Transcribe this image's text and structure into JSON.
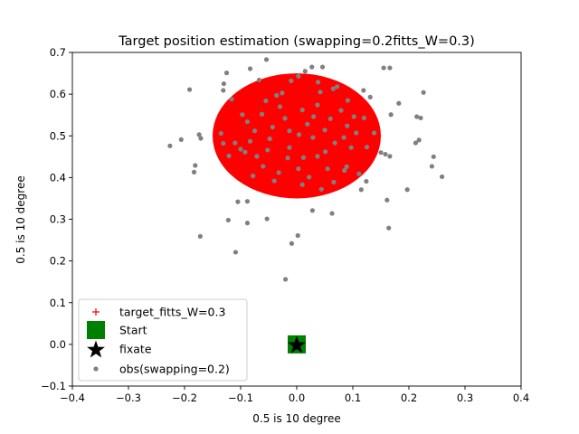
{
  "chart_data": {
    "type": "scatter",
    "title": "Target position estimation (swapping=0.2fitts_W=0.3)",
    "xlabel": "0.5 is 10 degree",
    "ylabel": "0.5 is 10 degree",
    "xlim": [
      -0.4,
      0.4
    ],
    "ylim": [
      -0.1,
      0.7
    ],
    "xticks": [
      -0.4,
      -0.3,
      -0.2,
      -0.1,
      0.0,
      0.1,
      0.2,
      0.3,
      0.4
    ],
    "xtick_labels": [
      "−0.4",
      "−0.3",
      "−0.2",
      "−0.1",
      "0.0",
      "0.1",
      "0.2",
      "0.3",
      "0.4"
    ],
    "yticks": [
      -0.1,
      0.0,
      0.1,
      0.2,
      0.3,
      0.4,
      0.5,
      0.6,
      0.7
    ],
    "ytick_labels": [
      "−0.1",
      "0.0",
      "0.1",
      "0.2",
      "0.3",
      "0.4",
      "0.5",
      "0.6",
      "0.7"
    ],
    "grid": false,
    "legend_position": "lower-left",
    "legend": [
      {
        "label": "target_fitts_W=0.3",
        "marker": "plus",
        "color": "#ff0000"
      },
      {
        "label": "Start",
        "marker": "square",
        "color": "#008000"
      },
      {
        "label": "fixate",
        "marker": "star",
        "color": "#000000"
      },
      {
        "label": "obs(swapping=0.2)",
        "marker": "dot",
        "color": "#808080"
      }
    ],
    "target": {
      "center": [
        0.0,
        0.5
      ],
      "width": 0.3,
      "height": 0.3,
      "color": "#ff0000"
    },
    "start": {
      "x": 0.0,
      "y": 0.0,
      "color": "#008000"
    },
    "fixate": {
      "x": 0.0,
      "y": 0.0,
      "color": "#000000"
    },
    "series": [
      {
        "name": "obs(swapping=0.2)",
        "color": "#808080",
        "points": [
          [
            -0.054,
            0.683
          ],
          [
            -0.083,
            0.661
          ],
          [
            -0.125,
            0.651
          ],
          [
            -0.13,
            0.625
          ],
          [
            -0.131,
            0.609
          ],
          [
            -0.191,
            0.611
          ],
          [
            -0.116,
            0.588
          ],
          [
            -0.055,
            0.584
          ],
          [
            -0.097,
            0.551
          ],
          [
            -0.036,
            0.597
          ],
          [
            0.027,
            0.665
          ],
          [
            0.046,
            0.665
          ],
          [
            0.015,
            0.655
          ],
          [
            0.003,
            0.643
          ],
          [
            -0.026,
            0.603
          ],
          [
            0.042,
            0.605
          ],
          [
            0.065,
            0.613
          ],
          [
            0.091,
            0.585
          ],
          [
            0.119,
            0.609
          ],
          [
            0.155,
            0.663
          ],
          [
            0.166,
            0.663
          ],
          [
            0.131,
            0.593
          ],
          [
            0.182,
            0.578
          ],
          [
            0.226,
            0.604
          ],
          [
            0.214,
            0.546
          ],
          [
            0.221,
            0.543
          ],
          [
            0.168,
            0.551
          ],
          [
            0.12,
            0.543
          ],
          [
            0.138,
            0.507
          ],
          [
            0.09,
            0.524
          ],
          [
            -0.174,
            0.503
          ],
          [
            -0.171,
            0.494
          ],
          [
            -0.206,
            0.491
          ],
          [
            -0.226,
            0.476
          ],
          [
            -0.135,
            0.506
          ],
          [
            -0.131,
            0.482
          ],
          [
            -0.11,
            0.483
          ],
          [
            -0.075,
            0.512
          ],
          [
            -0.048,
            0.493
          ],
          [
            -0.013,
            0.512
          ],
          [
            0.019,
            0.528
          ],
          [
            0.05,
            0.514
          ],
          [
            0.068,
            0.483
          ],
          [
            0.097,
            0.472
          ],
          [
            0.125,
            0.473
          ],
          [
            0.15,
            0.46
          ],
          [
            0.158,
            0.456
          ],
          [
            0.166,
            0.451
          ],
          [
            0.212,
            0.483
          ],
          [
            0.218,
            0.49
          ],
          [
            0.244,
            0.45
          ],
          [
            0.241,
            0.427
          ],
          [
            0.259,
            0.402
          ],
          [
            -0.181,
            0.429
          ],
          [
            -0.183,
            0.413
          ],
          [
            -0.092,
            0.461
          ],
          [
            -0.071,
            0.451
          ],
          [
            -0.016,
            0.447
          ],
          [
            0.003,
            0.421
          ],
          [
            0.037,
            0.451
          ],
          [
            0.089,
            0.426
          ],
          [
            0.124,
            0.391
          ],
          [
            0.085,
            0.417
          ],
          [
            0.055,
            0.421
          ],
          [
            0.111,
            0.409
          ],
          [
            0.115,
            0.371
          ],
          [
            0.197,
            0.371
          ],
          [
            0.161,
            0.346
          ],
          [
            -0.105,
            0.342
          ],
          [
            -0.088,
            0.343
          ],
          [
            -0.122,
            0.298
          ],
          [
            -0.088,
            0.291
          ],
          [
            -0.053,
            0.301
          ],
          [
            0.028,
            0.321
          ],
          [
            0.063,
            0.314
          ],
          [
            0.164,
            0.279
          ],
          [
            -0.172,
            0.259
          ],
          [
            0.002,
            0.261
          ],
          [
            -0.009,
            0.242
          ],
          [
            -0.109,
            0.221
          ],
          [
            -0.02,
            0.156
          ],
          [
            -0.062,
            0.552
          ],
          [
            -0.021,
            0.542
          ],
          [
            0.01,
            0.562
          ],
          [
            0.037,
            0.574
          ],
          [
            0.06,
            0.541
          ],
          [
            -0.088,
            0.534
          ],
          [
            -0.043,
            0.521
          ],
          [
            0.004,
            0.503
          ],
          [
            0.029,
            0.496
          ],
          [
            -0.1,
            0.468
          ],
          [
            -0.121,
            0.452
          ],
          [
            -0.06,
            0.427
          ],
          [
            -0.032,
            0.412
          ],
          [
            0.022,
            0.401
          ],
          [
            0.066,
            0.389
          ],
          [
            -0.078,
            0.404
          ],
          [
            -0.04,
            0.392
          ],
          [
            0.01,
            0.383
          ],
          [
            0.044,
            0.372
          ],
          [
            -0.067,
            0.634
          ],
          [
            -0.01,
            0.632
          ],
          [
            0.038,
            0.629
          ],
          [
            0.072,
            0.618
          ],
          [
            -0.03,
            0.57
          ],
          [
            0.079,
            0.561
          ],
          [
            0.102,
            0.546
          ],
          [
            -0.013,
            0.472
          ],
          [
            0.012,
            0.448
          ],
          [
            0.051,
            0.462
          ],
          [
            0.084,
            0.496
          ],
          [
            0.106,
            0.507
          ],
          [
            -0.052,
            0.466
          ],
          [
            -0.083,
            0.487
          ],
          [
            0.03,
            0.546
          ]
        ]
      }
    ]
  }
}
